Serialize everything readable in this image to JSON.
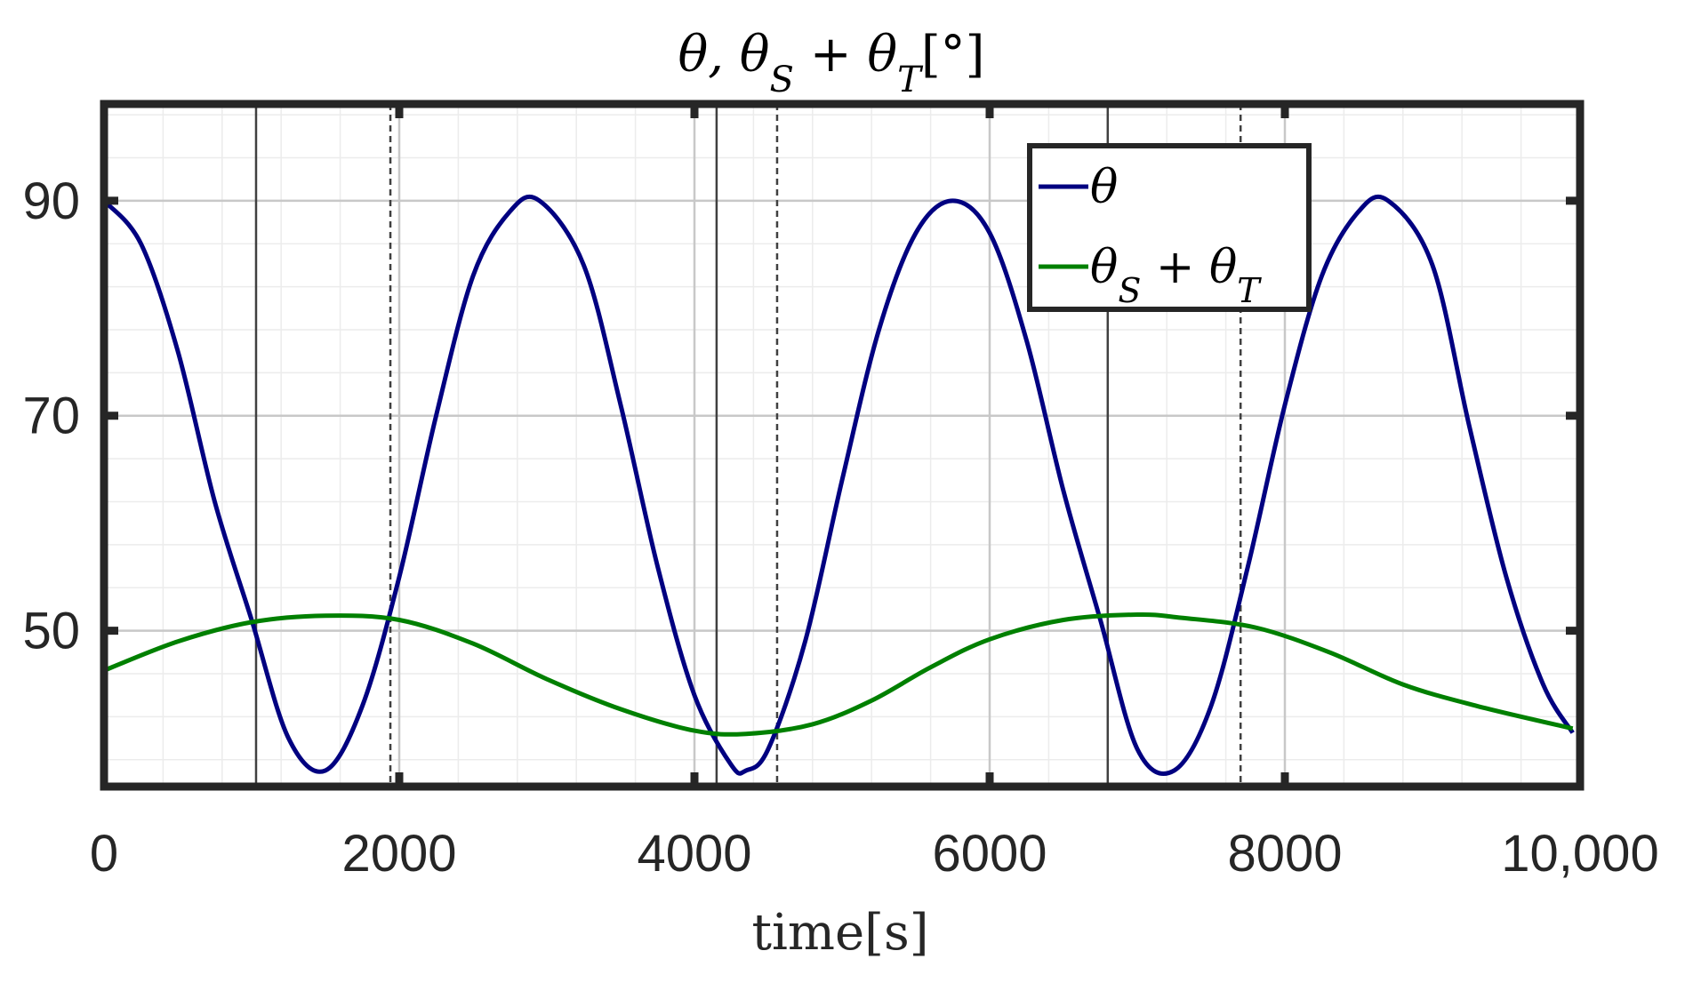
{
  "chart_data": {
    "type": "line",
    "title": "θ, θS + θT[°]",
    "xlabel": "time[s]",
    "ylabel": "",
    "xlim": [
      0,
      10000
    ],
    "ylim": [
      35.5,
      99
    ],
    "grid": true,
    "legend_position": "top-right",
    "x_ticks": [
      0,
      2000,
      4000,
      6000,
      8000,
      10000
    ],
    "x_tick_labels": [
      "0",
      "2000",
      "4000",
      "6000",
      "8000",
      "10,000"
    ],
    "y_ticks": [
      50,
      70,
      90
    ],
    "y_tick_labels": [
      "50",
      "70",
      "90"
    ],
    "series": [
      {
        "name": "θ",
        "color": "#000080",
        "x": [
          0,
          250,
          500,
          750,
          1000,
          1250,
          1500,
          1750,
          2000,
          2250,
          2500,
          2750,
          2950,
          3250,
          3500,
          3750,
          4000,
          4250,
          4350,
          4500,
          4750,
          5000,
          5250,
          5500,
          5750,
          6000,
          6250,
          6500,
          6750,
          7000,
          7250,
          7500,
          7750,
          8000,
          8250,
          8500,
          8700,
          9000,
          9250,
          9500,
          9750,
          9950
        ],
        "y": [
          90,
          86,
          76,
          62,
          51,
          40,
          37,
          43,
          55,
          70,
          83,
          89,
          90,
          84,
          71,
          56,
          44,
          37.5,
          37,
          39,
          49,
          64,
          78,
          87,
          90,
          87,
          77,
          63,
          51,
          39,
          37,
          43,
          56,
          71,
          83,
          89,
          90,
          84,
          69,
          55,
          45,
          40.5
        ]
      },
      {
        "name": "θS + θT",
        "color": "#008000",
        "x": [
          0,
          500,
          1000,
          1500,
          2000,
          2500,
          3000,
          3500,
          4000,
          4350,
          4800,
          5200,
          5600,
          6000,
          6500,
          7000,
          7300,
          7800,
          8300,
          8800,
          9300,
          9950
        ],
        "y": [
          46.3,
          49,
          50.8,
          51.4,
          51,
          48.8,
          45.5,
          42.7,
          40.7,
          40.4,
          41.3,
          43.5,
          46.6,
          49.2,
          51,
          51.5,
          51.2,
          50.3,
          48,
          45,
          43,
          40.9
        ]
      }
    ],
    "reference_lines": [
      {
        "x": 1030,
        "style": "solid"
      },
      {
        "x": 1940,
        "style": "dashed"
      },
      {
        "x": 4150,
        "style": "solid"
      },
      {
        "x": 4560,
        "style": "dashed"
      },
      {
        "x": 6800,
        "style": "solid"
      },
      {
        "x": 7700,
        "style": "dashed"
      }
    ]
  },
  "labels": {
    "title": "θ, θS + θT[°]",
    "xlabel": "time[s]",
    "legend_theta": "θ",
    "legend_sum": "θS + θT"
  }
}
